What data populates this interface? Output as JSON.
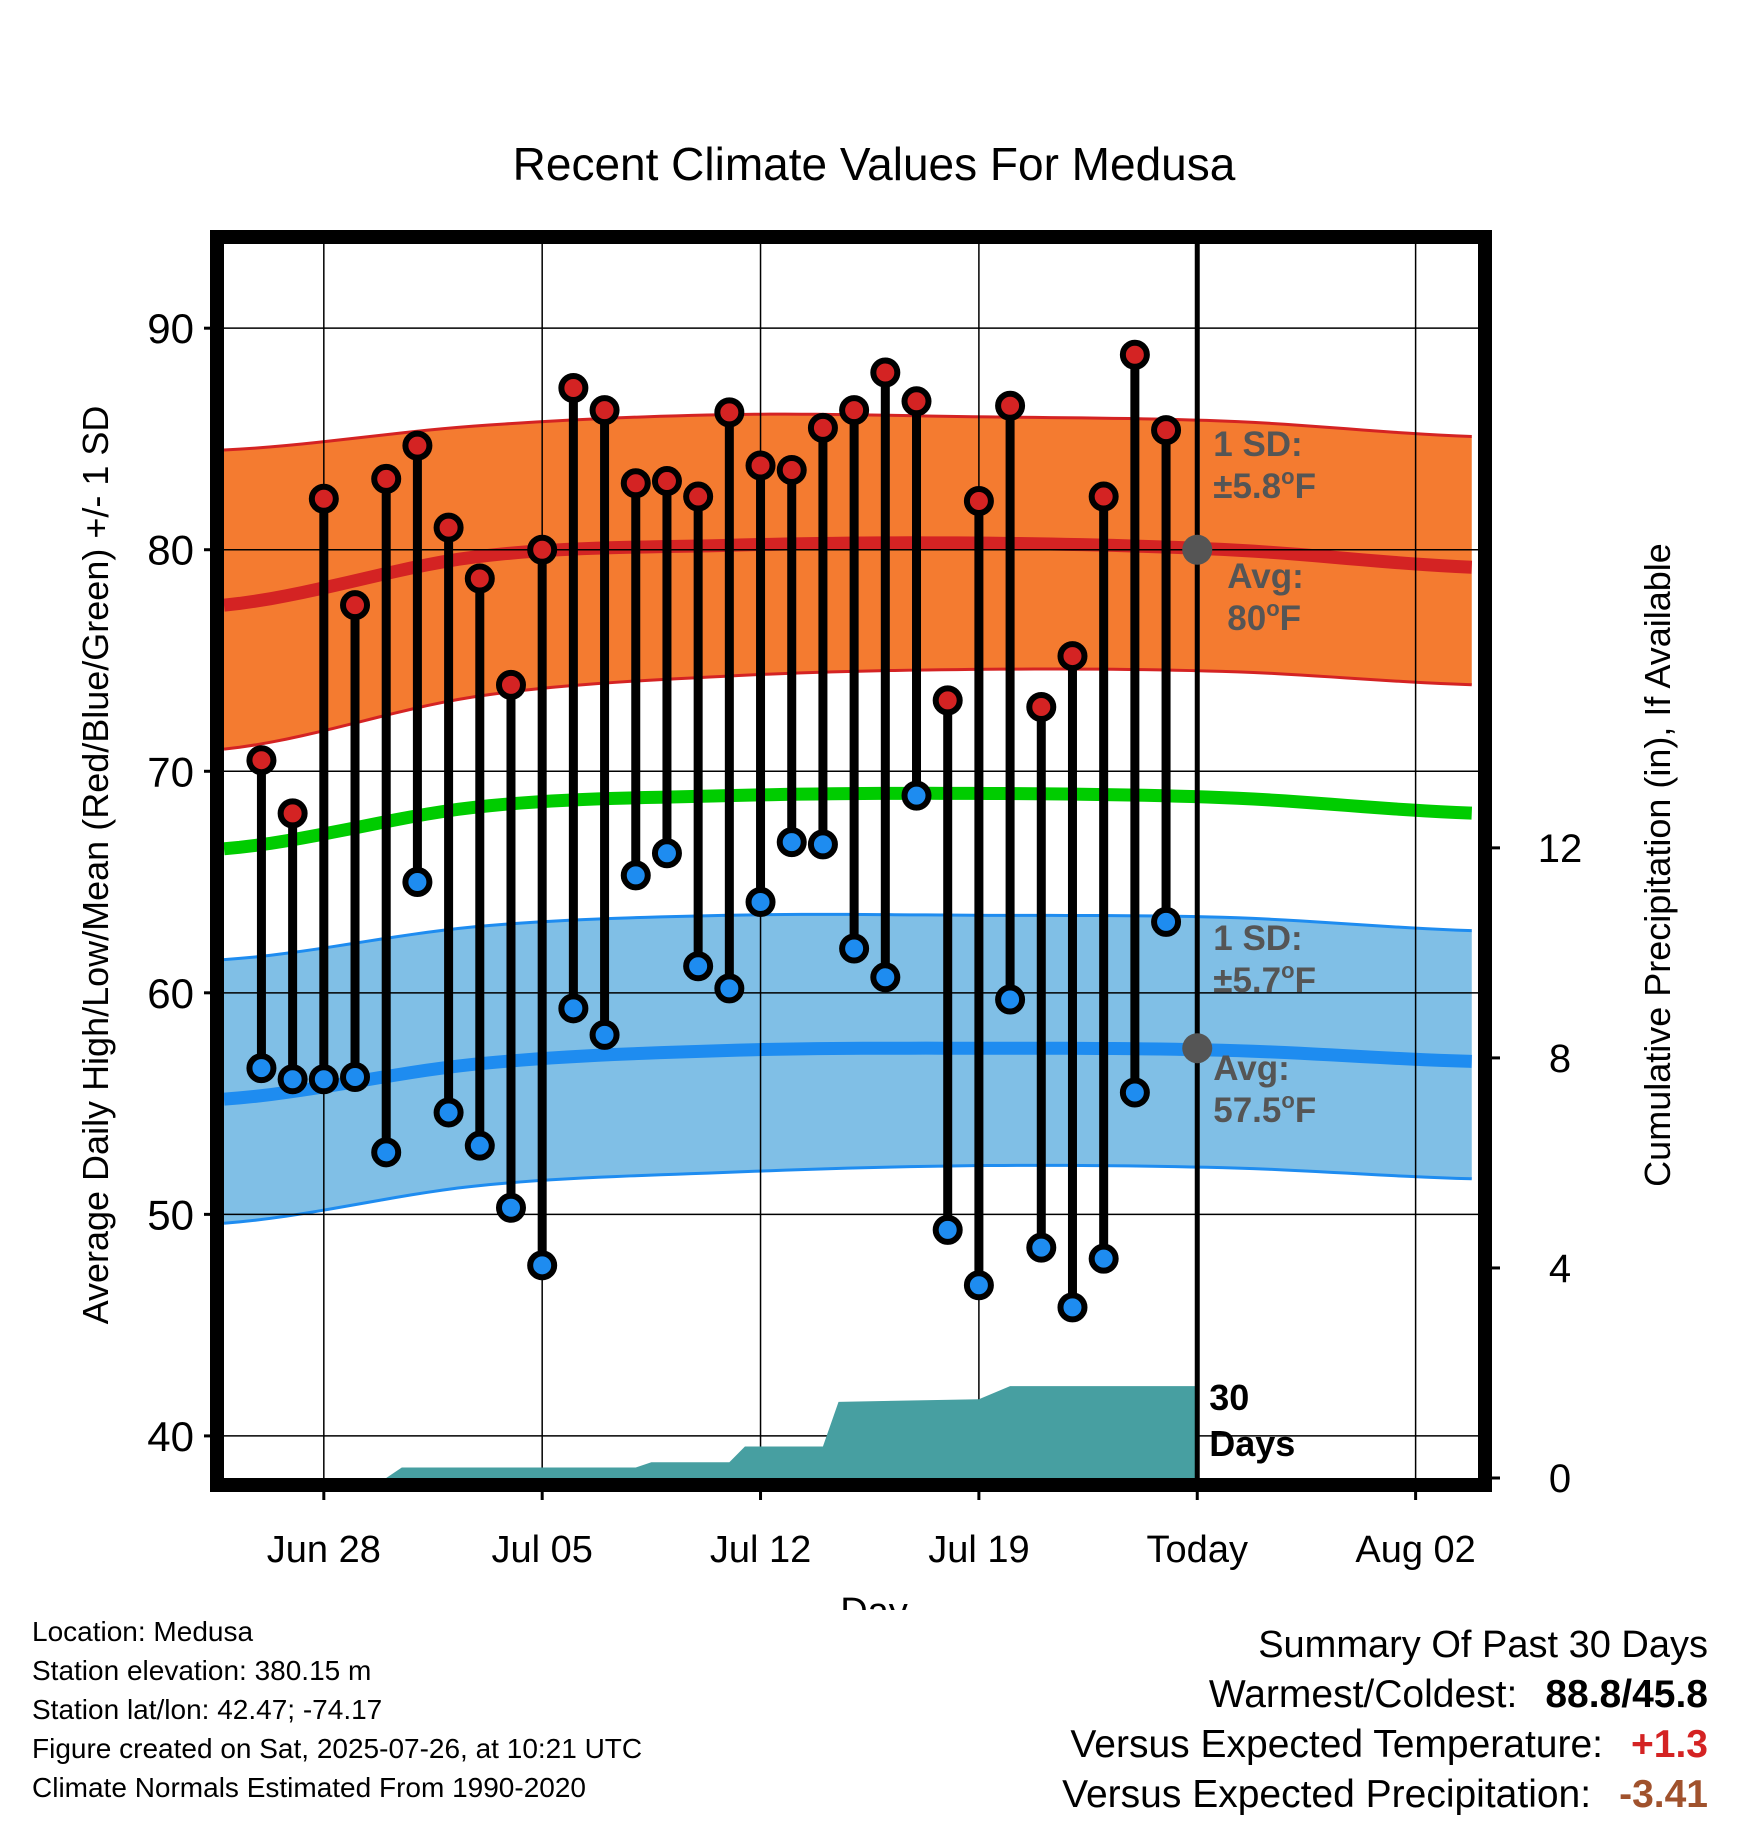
{
  "chart_data": {
    "type": "range",
    "title": "Recent Climate Values For Medusa",
    "xlabel": "Day",
    "ylabel": "Average Daily High/Low/Mean (Red/Blue/Green) +/- 1 SD",
    "y2label": "Cumulative Precipitation (in), If Available",
    "x_tick_labels": [
      "Jun 28",
      "Jul 05",
      "Jul 12",
      "Jul 19",
      "Today",
      "Aug 02"
    ],
    "x_tick_days": [
      3,
      10,
      17,
      24,
      31,
      38
    ],
    "xlim_days": [
      -0.2,
      40
    ],
    "ylim": [
      38.1,
      93.8
    ],
    "y_ticks": [
      40,
      50,
      60,
      70,
      80,
      90
    ],
    "y2lim": [
      0,
      23.5
    ],
    "y2_ticks": [
      0,
      4,
      8,
      12
    ],
    "grid": true,
    "today_day": 31,
    "today_label": [
      "30",
      "Days"
    ],
    "daily": {
      "days": [
        1,
        2,
        3,
        4,
        5,
        6,
        7,
        8,
        9,
        10,
        11,
        12,
        13,
        14,
        15,
        16,
        17,
        18,
        19,
        20,
        21,
        22,
        23,
        24,
        25,
        26,
        27,
        28,
        29,
        30
      ],
      "high": [
        70.5,
        68.1,
        82.3,
        77.5,
        83.2,
        84.7,
        81.0,
        78.7,
        73.9,
        80.0,
        87.3,
        86.3,
        83.0,
        83.1,
        82.4,
        86.2,
        83.8,
        83.6,
        85.5,
        86.3,
        88.0,
        86.7,
        73.2,
        82.2,
        86.5,
        72.9,
        75.2,
        82.4,
        88.8,
        85.4
      ],
      "low": [
        56.6,
        56.1,
        56.1,
        56.2,
        52.8,
        65.0,
        54.6,
        53.1,
        50.3,
        47.7,
        59.3,
        58.1,
        65.3,
        66.3,
        61.2,
        60.2,
        64.1,
        66.8,
        66.7,
        62.0,
        60.7,
        68.9,
        49.3,
        46.8,
        59.7,
        48.5,
        45.8,
        48.0,
        55.5,
        63.2
      ]
    },
    "normals": {
      "days": [
        -0.2,
        8,
        16,
        24,
        32,
        40
      ],
      "mean_high": [
        77.5,
        79.7,
        80.2,
        80.3,
        80.0,
        79.2
      ],
      "high_upper": [
        84.5,
        85.6,
        86.1,
        86.0,
        85.8,
        85.1
      ],
      "high_lower": [
        71.0,
        73.4,
        74.3,
        74.6,
        74.5,
        73.9
      ],
      "mean_avg": [
        66.5,
        68.4,
        68.9,
        69.0,
        68.8,
        68.1
      ],
      "mean_low": [
        55.2,
        56.8,
        57.4,
        57.5,
        57.4,
        56.9
      ],
      "low_upper": [
        61.5,
        63.0,
        63.5,
        63.5,
        63.4,
        62.8
      ],
      "low_lower": [
        49.6,
        51.3,
        51.9,
        52.2,
        52.1,
        51.6
      ]
    },
    "precip": {
      "days": [
        -0.2,
        5,
        5.5,
        13,
        13.5,
        16,
        16.5,
        19,
        19.5,
        24,
        25,
        31
      ],
      "values": [
        0,
        0,
        0.2,
        0.2,
        0.3,
        0.3,
        0.6,
        0.6,
        1.45,
        1.5,
        1.75,
        1.75
      ]
    },
    "annotations": {
      "high_sd_line1": "1 SD:",
      "high_sd_line2": "±5.8",
      "high_avg_line1": "Avg:",
      "high_avg_line2": "80",
      "low_sd_line1": "1 SD:",
      "low_sd_line2": "±5.7",
      "low_avg_line1": "Avg:",
      "low_avg_line2": "57.5",
      "degree_symbol": "o",
      "unit": "F"
    },
    "colors": {
      "high_band": "#f47b30",
      "high_line": "#d42323",
      "mean_line": "#00cc00",
      "low_band": "#80bfe6",
      "low_line": "#1e8cf0",
      "precip": "#479fa1",
      "annotation": "#555555",
      "high_dot": "#d42323",
      "low_dot": "#1e8cf0"
    }
  },
  "info": {
    "location": "Location: Medusa",
    "elevation": "Station elevation: 380.15 m",
    "latlon": "Station lat/lon: 42.47; -74.17",
    "created": "Figure created on Sat, 2025-07-26, at 10:21 UTC",
    "normals": "Climate Normals Estimated From 1990-2020"
  },
  "summary": {
    "heading": "Summary Of Past 30 Days",
    "warm_cold_label": "Warmest/Coldest:",
    "warm_cold_value": "88.8/45.8",
    "temp_label": "Versus Expected Temperature:",
    "temp_value": "+1.3",
    "temp_color": "#d42323",
    "precip_label": "Versus Expected Precipitation:",
    "precip_value": "-3.41",
    "precip_color": "#a0522d"
  }
}
